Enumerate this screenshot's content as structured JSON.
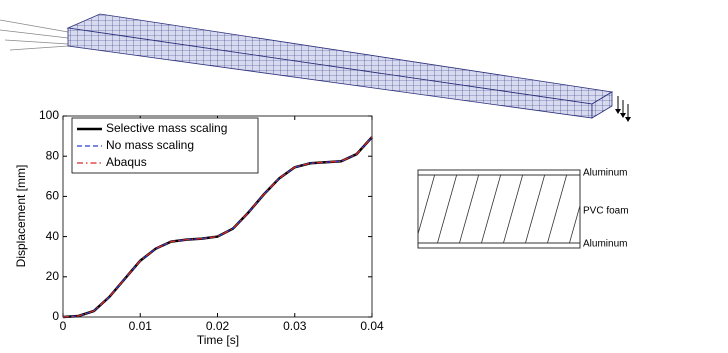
{
  "chart_data": {
    "type": "line",
    "xlabel": "Time [s]",
    "ylabel": "Displacement [mm]",
    "x": [
      0,
      0.002,
      0.004,
      0.006,
      0.008,
      0.01,
      0.012,
      0.014,
      0.016,
      0.018,
      0.02,
      0.022,
      0.024,
      0.026,
      0.028,
      0.03,
      0.032,
      0.034,
      0.036,
      0.038,
      0.04
    ],
    "series": [
      {
        "name": "Selective mass scaling",
        "color": "#000000",
        "style": "solid",
        "values": [
          0,
          0.5,
          3,
          10,
          19,
          28,
          34,
          37.5,
          38.5,
          39,
          40,
          44,
          52,
          61,
          69,
          74.5,
          76.5,
          77,
          77.5,
          81,
          89.5
        ]
      },
      {
        "name": "No mass scaling",
        "color": "#2a3cd6",
        "style": "dashed",
        "values": [
          0,
          0.5,
          3,
          10,
          19,
          28,
          34,
          37.5,
          38.5,
          39,
          40,
          44,
          52,
          61,
          69,
          74.5,
          76.5,
          77,
          77.5,
          81,
          89.5
        ]
      },
      {
        "name": "Abaqus",
        "color": "#d62a2a",
        "style": "dashdot",
        "values": [
          0,
          0.5,
          3,
          10,
          19,
          28,
          34,
          37.5,
          38.5,
          39,
          40,
          44,
          52,
          61,
          69,
          74.5,
          76.5,
          77,
          77.5,
          81,
          89.5
        ]
      }
    ],
    "xlim": [
      0,
      0.04
    ],
    "xticks": [
      0,
      0.01,
      0.02,
      0.03,
      0.04
    ],
    "ylim": [
      0,
      100
    ],
    "yticks": [
      0,
      20,
      40,
      60,
      80,
      100
    ],
    "legend": "upper-left"
  },
  "diagram": {
    "labels": [
      "Aluminum",
      "PVC foam",
      "Aluminum"
    ]
  }
}
